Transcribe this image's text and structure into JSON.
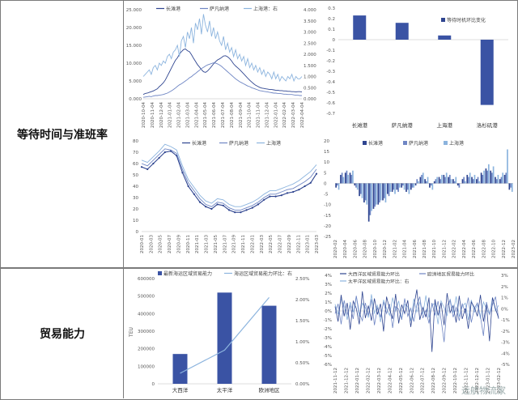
{
  "rows": [
    {
      "label": "等待时间与准班率"
    },
    {
      "label": "贸易能力"
    }
  ],
  "watermark": "远航物流家",
  "colors": {
    "dark": "#2f4590",
    "mid": "#6f86c4",
    "light": "#8cb4de",
    "bar": "#3a53a4"
  },
  "chart_data": [
    {
      "id": "c1",
      "type": "line",
      "legend": [
        "长滩港",
        "萨凡纳港",
        "上海港：右"
      ],
      "yticks": [
        "0.000",
        "5.000",
        "10.000",
        "15.000",
        "20.000",
        "25.000"
      ],
      "y2ticks": [
        "0.000",
        "0.500",
        "1.000",
        "1.500",
        "2.000",
        "2.500",
        "3.000",
        "3.500",
        "4.000"
      ],
      "xticks": [
        "2020-10-04",
        "2020-11-04",
        "2020-12-04",
        "2021-01-04",
        "2021-02-04",
        "2021-03-04",
        "2021-04-04",
        "2021-05-04",
        "2021-06-04",
        "2021-07-04",
        "2021-08-04",
        "2021-09-04",
        "2021-10-04",
        "2021-11-04",
        "2021-12-04",
        "2022-01-04",
        "2022-02-04",
        "2022-03-04",
        "2022-04-04"
      ],
      "ylim": [
        0,
        25
      ],
      "y2lim": [
        0,
        4
      ],
      "series": [
        {
          "name": "长滩港",
          "axis": "left",
          "values": [
            1.2,
            1.5,
            1.6,
            1.8,
            2.0,
            2.2,
            2.5,
            2.8,
            3.4,
            3.9,
            4.5,
            5.3,
            6.4,
            7.5,
            8.6,
            9.7,
            10.8,
            11.5,
            12.5,
            13.2,
            13.8,
            14.0,
            13.5,
            13.2,
            12.4,
            11.4,
            10.5,
            9.6,
            8.9,
            8.2,
            7.6,
            7.4,
            7.8,
            8.4,
            9.1,
            9.8,
            10.4,
            10.9,
            11.2,
            11.6,
            12.0,
            12.1,
            11.8,
            11.3,
            10.6,
            9.8,
            9.2,
            8.7,
            8.2,
            7.6,
            7.0,
            6.4,
            5.8,
            5.2,
            4.7,
            4.2,
            3.8,
            3.5,
            3.2,
            3.0,
            2.9,
            2.8,
            2.7,
            2.6,
            2.6,
            2.5,
            2.4,
            2.4,
            2.3,
            2.3,
            2.2,
            2.2,
            2.1,
            2.1,
            2.0,
            2.0,
            1.9,
            2.0,
            2.0,
            1.9
          ]
        },
        {
          "name": "萨凡纳港",
          "axis": "left",
          "values": [
            0.4,
            0.5,
            0.6,
            0.7,
            0.6,
            0.8,
            0.9,
            0.9,
            1.0,
            1.1,
            1.2,
            1.4,
            1.6,
            1.9,
            2.2,
            2.6,
            3.0,
            3.5,
            3.9,
            4.2,
            4.6,
            5.0,
            5.4,
            5.9,
            6.2,
            6.7,
            7.1,
            7.6,
            8.0,
            8.5,
            8.8,
            9.2,
            9.5,
            9.7,
            9.9,
            10.1,
            10.0,
            9.8,
            9.5,
            9.1,
            8.6,
            8.1,
            7.6,
            7.1,
            6.6,
            6.1,
            5.6,
            5.2,
            4.8,
            4.5,
            4.2,
            3.9,
            3.6,
            3.4,
            3.1,
            2.9,
            2.7,
            2.5,
            2.3,
            2.2,
            2.1,
            2.0,
            1.9,
            1.8,
            1.7,
            1.6,
            1.6,
            1.5,
            1.5,
            1.4,
            1.3,
            1.3,
            1.2,
            1.2,
            1.2,
            1.1,
            1.0,
            1.0,
            0.9,
            0.9
          ]
        },
        {
          "name": "上海港：右",
          "axis": "right",
          "values": [
            1.0,
            1.1,
            1.2,
            1.3,
            1.1,
            1.4,
            1.5,
            1.3,
            1.6,
            1.5,
            1.7,
            1.6,
            1.9,
            2.0,
            1.8,
            2.1,
            2.2,
            2.4,
            1.9,
            2.6,
            2.8,
            2.3,
            3.0,
            2.7,
            3.2,
            2.5,
            3.4,
            3.1,
            3.6,
            2.9,
            3.8,
            3.3,
            3.0,
            3.5,
            2.8,
            3.2,
            2.7,
            3.0,
            2.6,
            2.4,
            2.8,
            2.2,
            2.5,
            2.1,
            2.3,
            1.9,
            2.2,
            1.8,
            2.0,
            1.7,
            1.9,
            1.5,
            1.8,
            1.4,
            1.6,
            1.3,
            1.5,
            1.2,
            1.4,
            1.1,
            1.3,
            1.0,
            1.2,
            1.1,
            0.9,
            1.2,
            0.9,
            1.1,
            0.8,
            1.0,
            0.9,
            0.8,
            1.0,
            0.9,
            1.1,
            0.8,
            1.0,
            0.9,
            0.9,
            1.0
          ]
        }
      ]
    },
    {
      "id": "c2",
      "type": "bar",
      "legend": [
        "等待时机环比变化"
      ],
      "categories": [
        "长滩港",
        "萨凡纳港",
        "上海港",
        "洛杉矶港"
      ],
      "values": [
        0.23,
        0.16,
        0.04,
        -0.62
      ],
      "yticks": [
        "0.3",
        "0.2",
        "0.1",
        "0",
        "-0.1",
        "-0.2",
        "-0.3",
        "-0.4",
        "-0.5",
        "-0.6",
        "-0.7"
      ],
      "ylim": [
        -0.7,
        0.3
      ]
    },
    {
      "id": "c3",
      "type": "line",
      "legend": [
        "长滩港",
        "萨凡纳港",
        "上海港"
      ],
      "yticks": [
        "0",
        "10",
        "20",
        "30",
        "40",
        "50",
        "60",
        "70",
        "80"
      ],
      "xticks": [
        "2020-01",
        "2020-03",
        "2020-05",
        "2020-07",
        "2020-09",
        "2020-11",
        "2021-01",
        "2021-03",
        "2021-05",
        "2021-07",
        "2021-09",
        "2021-11",
        "2022-01",
        "2022-03",
        "2022-05",
        "2022-07",
        "2022-09",
        "2022-11",
        "2023-01",
        "2023-03"
      ],
      "ylim": [
        0,
        80
      ],
      "series": [
        {
          "name": "长滩港",
          "values": [
            57,
            55,
            60,
            65,
            70,
            71,
            67,
            52,
            40,
            33,
            26,
            22,
            20,
            24,
            23,
            19,
            17,
            17,
            19,
            21,
            24,
            28,
            31,
            31,
            32,
            34,
            35,
            37,
            40,
            43,
            51
          ]
        },
        {
          "name": "萨凡纳港",
          "values": [
            60,
            58,
            63,
            68,
            73,
            72,
            69,
            55,
            43,
            36,
            29,
            24,
            22,
            26,
            25,
            21,
            19,
            19,
            21,
            23,
            26,
            30,
            33,
            33,
            35,
            37,
            38,
            41,
            44,
            48,
            55
          ]
        },
        {
          "name": "上海港",
          "values": [
            63,
            61,
            66,
            71,
            77,
            75,
            72,
            58,
            46,
            39,
            32,
            27,
            25,
            29,
            28,
            24,
            22,
            22,
            24,
            26,
            29,
            33,
            36,
            36,
            38,
            40,
            42,
            45,
            49,
            53,
            59
          ]
        }
      ]
    },
    {
      "id": "c4",
      "type": "bar",
      "legend": [
        "长滩港",
        "萨凡纳港",
        "上海港"
      ],
      "yticks": [
        "20",
        "15",
        "10",
        "5",
        "0",
        "-5",
        "-10",
        "-15",
        "-20",
        "-25"
      ],
      "xticks": [
        "2020-02",
        "2020-04",
        "2020-06",
        "2020-08",
        "2020-10",
        "2020-12",
        "2021-02",
        "2021-04",
        "2021-06",
        "2021-08",
        "2021-10",
        "2021-12",
        "2022-02",
        "2022-04",
        "2022-06",
        "2022-08",
        "2022-10",
        "2022-12",
        "2023-02"
      ],
      "ylim": [
        -25,
        20
      ],
      "series": [
        {
          "name": "长滩港",
          "values": [
            -2,
            4,
            5,
            5,
            -1,
            -6,
            -9,
            -18,
            -12,
            -10,
            -8,
            -5,
            -4,
            -3,
            -2,
            -4,
            -3,
            -1,
            3,
            2,
            -2,
            1,
            3,
            4,
            3,
            2,
            -1,
            2,
            4,
            3,
            2,
            5,
            7,
            6,
            3,
            2,
            4,
            -3
          ]
        },
        {
          "name": "萨凡纳港",
          "values": [
            -1,
            5,
            6,
            4,
            -2,
            -5,
            -8,
            -15,
            -11,
            -9,
            -7,
            -6,
            -3,
            -4,
            -1,
            -3,
            -2,
            2,
            4,
            1,
            -1,
            2,
            2,
            3,
            4,
            1,
            -2,
            3,
            3,
            2,
            3,
            4,
            6,
            5,
            2,
            3,
            5,
            -2
          ]
        },
        {
          "name": "上海港",
          "values": [
            -3,
            3,
            4,
            6,
            -3,
            -7,
            -10,
            -13,
            -10,
            -8,
            -9,
            -4,
            -5,
            -2,
            -3,
            -5,
            -2,
            1,
            5,
            3,
            -3,
            3,
            4,
            5,
            2,
            3,
            0,
            1,
            5,
            4,
            1,
            6,
            9,
            8,
            4,
            5,
            16,
            -4
          ]
        }
      ]
    },
    {
      "id": "c5",
      "type": "bar",
      "legend": [
        "最新海运区域贸易能力",
        "海运区域贸易能力环比：右"
      ],
      "categories": [
        "大西洋",
        "太平洋",
        "欧洲地区"
      ],
      "values": [
        170000,
        520000,
        445000
      ],
      "line_values": [
        0.0025,
        0.008,
        0.0205
      ],
      "yticks": [
        "0",
        "100000",
        "200000",
        "300000",
        "400000",
        "500000",
        "600000"
      ],
      "y2ticks": [
        "0.00%",
        "0.50%",
        "1.00%",
        "1.50%",
        "2.00%",
        "2.50%"
      ],
      "ylabel": "TEU",
      "ylim": [
        0,
        600000
      ],
      "y2lim": [
        0,
        0.025
      ]
    },
    {
      "id": "c6",
      "type": "line",
      "legend": [
        "大西洋区域贸易能力环比",
        "欧洲地区贸易能力环比",
        "太平洋区域贸易能力环比：右"
      ],
      "yticks": [
        "4%",
        "3%",
        "2%",
        "1%",
        "0%",
        "-1%",
        "-2%",
        "-3%",
        "-4%",
        "-5%",
        "-6%"
      ],
      "y2ticks": [
        "3%",
        "2%",
        "1%",
        "0%",
        "-1%",
        "-2%",
        "-3%",
        "-4%",
        "-5%"
      ],
      "xticks": [
        "2021-11-12",
        "2021-12-12",
        "2022-01-12",
        "2022-02-12",
        "2022-03-12",
        "2022-04-12",
        "2022-05-12",
        "2022-06-12",
        "2022-07-12",
        "2022-08-12",
        "2022-09-12",
        "2022-10-12",
        "2022-11-12",
        "2022-12-12",
        "2023-01-12",
        "2023-02-12"
      ],
      "ylim": [
        -6,
        4
      ],
      "y2lim": [
        -5,
        3
      ],
      "series": [
        {
          "name": "大西洋区域贸易能力环比",
          "axis": "left",
          "values": [
            0.5,
            -1.2,
            1.8,
            -0.6,
            0.9,
            -2.1,
            1.1,
            0.3,
            -1.5,
            2.2,
            -0.8,
            0.6,
            -1.1,
            1.4,
            -0.4,
            0.8,
            -2.3,
            1.6,
            0.2,
            -0.9,
            1.9,
            -1.4,
            0.7,
            -0.3,
            1.2,
            -1.8,
            0.5,
            2.4,
            -1.0,
            0.4,
            -0.7,
            1.5,
            -4.6,
            1.3,
            -0.5,
            0.9,
            -1.6,
            2.0,
            -0.2,
            0.6,
            -1.3,
            1.7,
            -0.9,
            0.3,
            -2.0,
            1.0,
            0.4,
            -0.6,
            1.8,
            -1.2,
            0.7,
            -3.4,
            1.5,
            0.2,
            -0.8
          ]
        },
        {
          "name": "欧洲地区贸易能力环比",
          "axis": "left",
          "values": [
            -0.3,
            0.8,
            -1.5,
            1.2,
            -0.4,
            0.6,
            -0.9,
            1.7,
            -0.2,
            -1.1,
            0.9,
            -0.5,
            1.3,
            -1.6,
            0.4,
            -0.7,
            1.0,
            -0.3,
            0.8,
            -1.9,
            0.5,
            0.2,
            -1.0,
            1.4,
            -0.6,
            0.3,
            -1.2,
            0.7,
            1.6,
            -0.8,
            0.1,
            -1.4,
            0.9,
            -0.5,
            1.1,
            -0.9,
            -3.5,
            0.6,
            1.2,
            -0.7,
            0.4,
            -1.1,
            0.8,
            -0.2,
            1.5,
            -1.3,
            0.3,
            0.9,
            -0.6,
            -2.8,
            1.0,
            -0.4,
            0.7,
            1.6,
            -0.9
          ]
        },
        {
          "name": "太平洋区域贸易能力环比：右",
          "axis": "right",
          "values": [
            0.4,
            -0.5,
            0.9,
            0.2,
            -1.0,
            0.6,
            -0.3,
            1.1,
            -0.7,
            0.5,
            0.1,
            -0.8,
            1.3,
            -0.4,
            0.3,
            -1.2,
            0.8,
            0.0,
            -0.6,
            1.0,
            -0.2,
            0.7,
            -0.9,
            0.4,
            0.2,
            -1.1,
            0.9,
            -0.3,
            0.6,
            -0.5,
            1.2,
            -0.8,
            0.3,
            0.5,
            -1.4,
            0.7,
            0.1,
            -0.6,
            0.9,
            -0.4,
            1.1,
            -0.7,
            0.2,
            0.5,
            -1.0,
            0.8,
            -0.3,
            0.4,
            -0.9,
            0.6,
            0.0,
            -0.5,
            1.0,
            -0.2,
            0.3
          ]
        }
      ]
    }
  ]
}
